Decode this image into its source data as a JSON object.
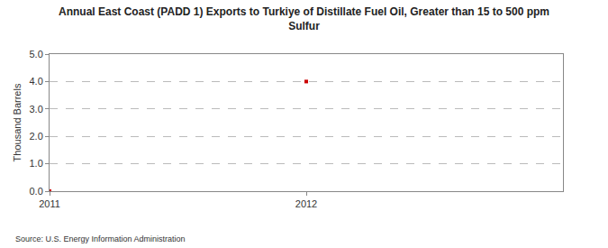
{
  "chart_data": {
    "type": "scatter",
    "title": "Annual East Coast (PADD 1) Exports to Turkiye of Distillate Fuel Oil, Greater than 15 to 500 ppm Sulfur",
    "y_label": "Thousand Barrels",
    "annotations": [
      "Source: U.S. Energy Information Administration"
    ],
    "x": [
      2011,
      2012
    ],
    "values": [
      0,
      4
    ],
    "color": "#cc0000",
    "marker": "square",
    "xlim": [
      2011,
      2013
    ],
    "xticks": [
      2011,
      2012
    ],
    "ylim": [
      0,
      5
    ],
    "yticks": [
      {
        "value": 0,
        "label": "0.0"
      },
      {
        "value": 1,
        "label": "1.0"
      },
      {
        "value": 2,
        "label": "2.0"
      },
      {
        "value": 3,
        "label": "3.0"
      },
      {
        "value": 4,
        "label": "4.0"
      },
      {
        "value": 5,
        "label": "5.0"
      }
    ],
    "grid": true
  }
}
